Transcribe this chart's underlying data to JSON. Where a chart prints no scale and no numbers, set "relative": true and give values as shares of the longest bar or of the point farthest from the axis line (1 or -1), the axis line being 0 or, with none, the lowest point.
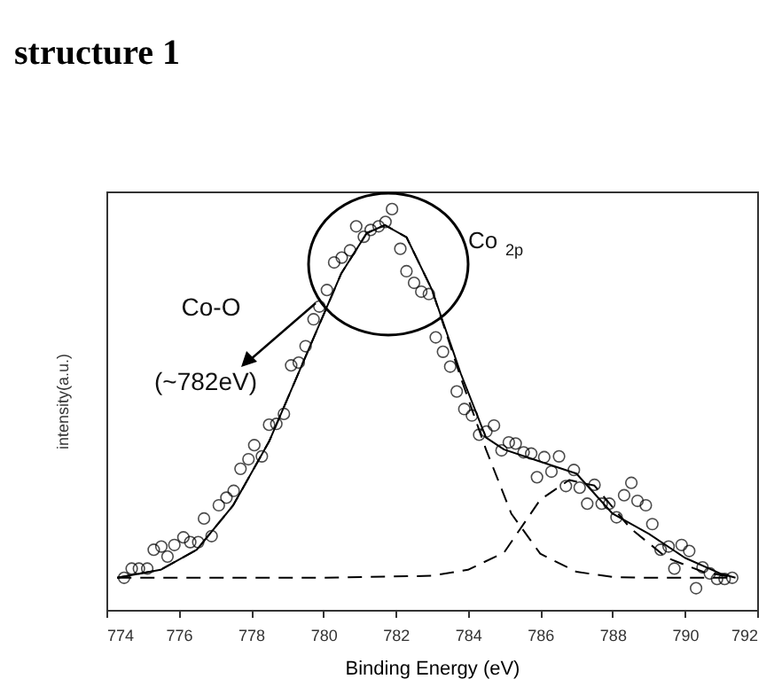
{
  "chart_data": {
    "type": "scatter",
    "title": "structure 1",
    "xlabel": "Binding Energy (eV)",
    "ylabel": "intensity(a.u.)",
    "relative": true,
    "xlim": [
      774,
      792
    ],
    "xticks": [
      774,
      776,
      778,
      780,
      782,
      784,
      786,
      788,
      790,
      792
    ],
    "annotations": [
      "Co $_{2p}$",
      "Co-O",
      "(~782eV)"
    ],
    "series": [
      {
        "marker": "circle",
        "color": "#000000",
        "x": [
          774.49,
          774.7,
          774.9,
          775.13,
          775.31,
          775.52,
          775.69,
          775.88,
          776.13,
          776.32,
          776.54,
          776.7,
          776.91,
          777.11,
          777.32,
          777.52,
          777.71,
          777.93,
          778.09,
          778.3,
          778.5,
          778.7,
          778.91,
          779.11,
          779.32,
          779.51,
          779.73,
          779.89,
          780.1,
          780.3,
          780.51,
          780.74,
          780.91,
          781.12,
          781.31,
          781.53,
          781.72,
          781.9,
          782.13,
          782.3,
          782.51,
          782.71,
          782.92,
          783.11,
          783.31,
          783.51,
          783.69,
          783.9,
          784.11,
          784.31,
          784.51,
          784.72,
          784.93,
          785.13,
          785.32,
          785.54,
          785.75,
          785.91,
          786.11,
          786.31,
          786.52,
          786.71,
          786.93,
          787.09,
          787.3,
          787.5,
          787.7,
          787.91,
          788.11,
          788.32,
          788.52,
          788.69,
          788.92,
          789.1,
          789.33,
          789.55,
          789.71,
          789.91,
          790.12,
          790.31,
          790.49,
          790.69,
          790.89,
          791.1,
          791.31
        ],
        "values": [
          0.08,
          0.103,
          0.103,
          0.103,
          0.15,
          0.158,
          0.133,
          0.162,
          0.181,
          0.169,
          0.169,
          0.228,
          0.184,
          0.261,
          0.28,
          0.297,
          0.352,
          0.376,
          0.411,
          0.383,
          0.462,
          0.464,
          0.489,
          0.61,
          0.617,
          0.658,
          0.725,
          0.757,
          0.798,
          0.867,
          0.879,
          0.897,
          0.957,
          0.931,
          0.948,
          0.957,
          0.968,
          1,
          0.901,
          0.845,
          0.816,
          0.794,
          0.788,
          0.68,
          0.644,
          0.607,
          0.545,
          0.501,
          0.485,
          0.437,
          0.445,
          0.46,
          0.398,
          0.418,
          0.415,
          0.393,
          0.39,
          0.331,
          0.381,
          0.345,
          0.383,
          0.309,
          0.349,
          0.305,
          0.265,
          0.312,
          0.265,
          0.265,
          0.231,
          0.286,
          0.317,
          0.272,
          0.261,
          0.214,
          0.15,
          0.158,
          0.103,
          0.162,
          0.147,
          0.054,
          0.106,
          0.091,
          0.077,
          0.077,
          0.08
        ]
      },
      {
        "type": "line",
        "color": "#000000",
        "line_style": "dashed",
        "x": [
          774.3,
          775.5,
          776.5,
          777.5,
          778.5,
          779.5,
          780.5,
          781.2,
          781.7,
          782.3,
          783,
          783.8,
          784.5,
          785.2,
          786,
          787,
          788,
          789,
          791.4
        ],
        "values": [
          0.08,
          0.1,
          0.15,
          0.26,
          0.42,
          0.63,
          0.84,
          0.94,
          0.96,
          0.93,
          0.8,
          0.58,
          0.4,
          0.24,
          0.14,
          0.095,
          0.082,
          0.08,
          0.08
        ]
      },
      {
        "type": "line",
        "color": "#000000",
        "line_style": "dashed",
        "x": [
          774.3,
          780,
          783,
          784,
          785,
          786,
          786.8,
          787.5,
          788.5,
          789.5,
          790.5,
          791.4
        ],
        "values": [
          0.08,
          0.08,
          0.085,
          0.1,
          0.143,
          0.275,
          0.324,
          0.31,
          0.203,
          0.13,
          0.095,
          0.08
        ]
      },
      {
        "type": "line",
        "color": "#000000",
        "line_style": "solid",
        "x": [
          774.3,
          775.5,
          776.5,
          777.5,
          778.5,
          779.5,
          780.5,
          781.2,
          781.7,
          782.3,
          783,
          783.8,
          784.5,
          785,
          786,
          787,
          788,
          789,
          790,
          791,
          791.4
        ],
        "values": [
          0.08,
          0.1,
          0.15,
          0.26,
          0.42,
          0.63,
          0.84,
          0.94,
          0.96,
          0.93,
          0.8,
          0.59,
          0.43,
          0.4,
          0.37,
          0.34,
          0.24,
          0.19,
          0.13,
          0.09,
          0.08
        ]
      }
    ]
  }
}
